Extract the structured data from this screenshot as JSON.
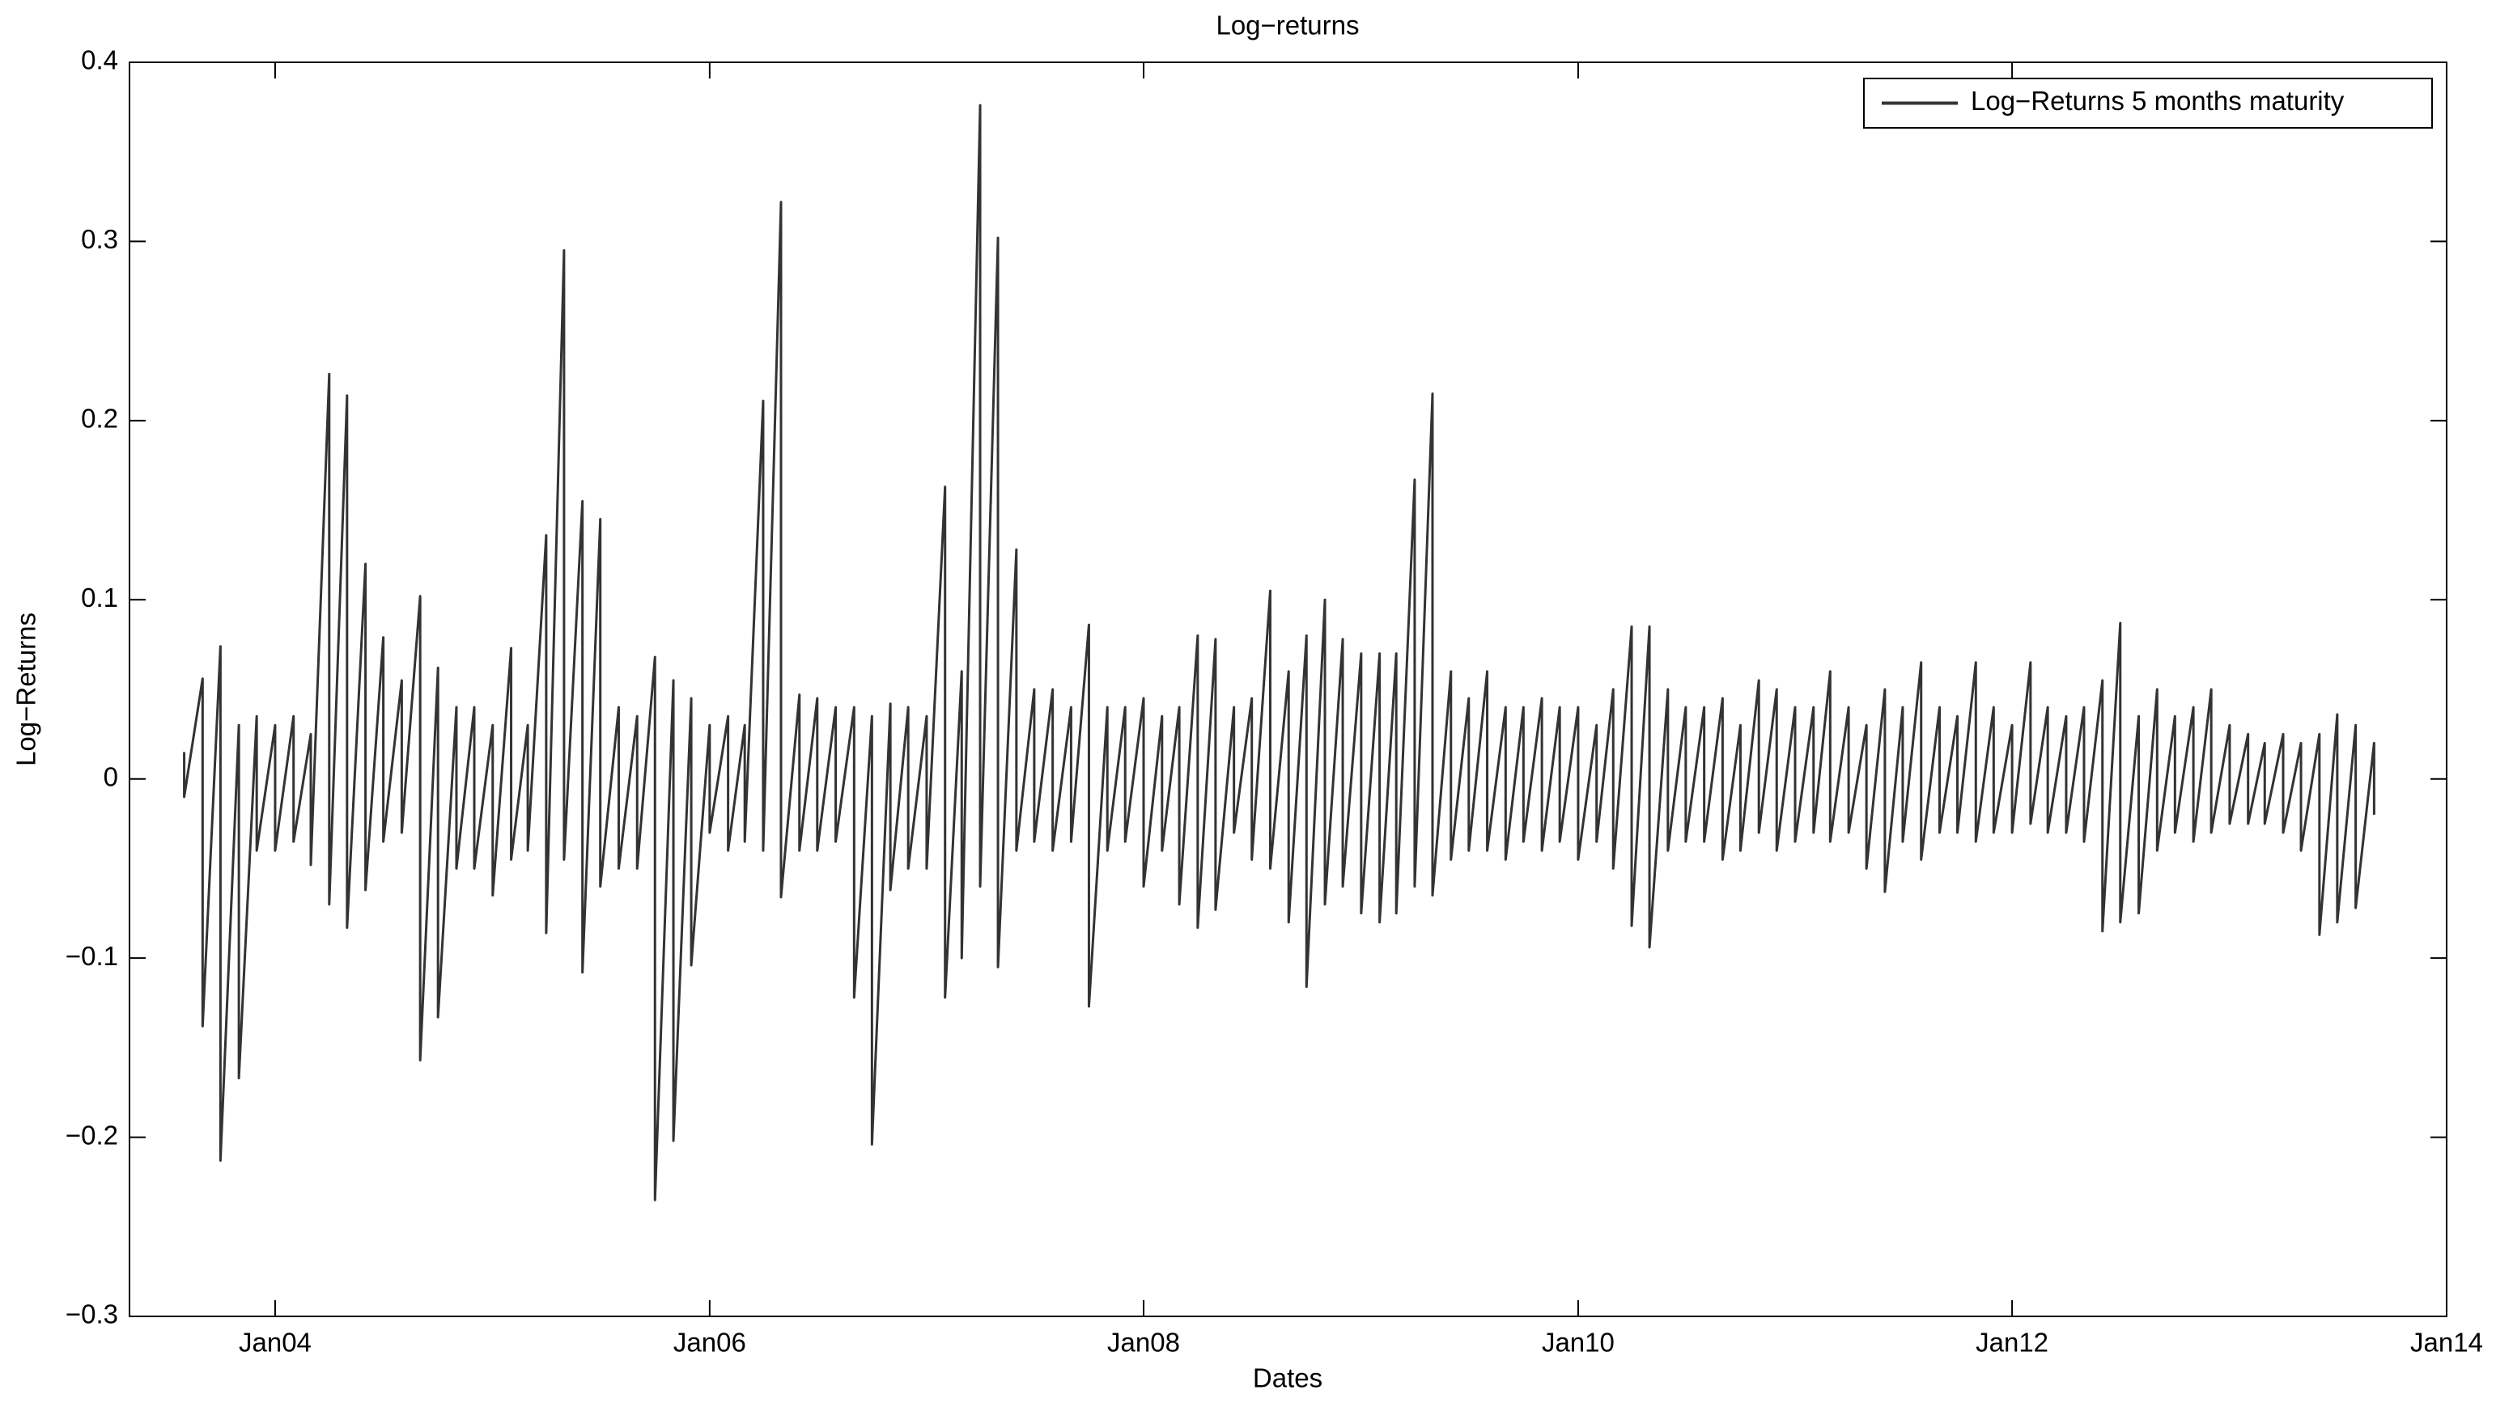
{
  "chart_data": {
    "type": "line",
    "title": "Log−returns",
    "x_label": "Dates",
    "y_label": "Log−Returns",
    "x": [
      "2003-08",
      "2003-08",
      "2003-09",
      "2003-09",
      "2003-10",
      "2003-10",
      "2003-11",
      "2003-11",
      "2003-12",
      "2003-12",
      "2004-01",
      "2004-01",
      "2004-02",
      "2004-02",
      "2004-03",
      "2004-03",
      "2004-04",
      "2004-04",
      "2004-05",
      "2004-05",
      "2004-06",
      "2004-06",
      "2004-07",
      "2004-07",
      "2004-08",
      "2004-08",
      "2004-09",
      "2004-09",
      "2004-10",
      "2004-10",
      "2004-11",
      "2004-11",
      "2004-12",
      "2004-12",
      "2005-01",
      "2005-01",
      "2005-02",
      "2005-02",
      "2005-03",
      "2005-03",
      "2005-04",
      "2005-04",
      "2005-05",
      "2005-05",
      "2005-06",
      "2005-06",
      "2005-07",
      "2005-07",
      "2005-08",
      "2005-08",
      "2005-09",
      "2005-09",
      "2005-10",
      "2005-10",
      "2005-11",
      "2005-11",
      "2005-12",
      "2005-12",
      "2006-01",
      "2006-01",
      "2006-02",
      "2006-02",
      "2006-03",
      "2006-03",
      "2006-04",
      "2006-04",
      "2006-05",
      "2006-05",
      "2006-06",
      "2006-06",
      "2006-07",
      "2006-07",
      "2006-08",
      "2006-08",
      "2006-09",
      "2006-09",
      "2006-10",
      "2006-10",
      "2006-11",
      "2006-11",
      "2006-12",
      "2006-12",
      "2007-01",
      "2007-01",
      "2007-02",
      "2007-02",
      "2007-03",
      "2007-03",
      "2007-04",
      "2007-04",
      "2007-05",
      "2007-05",
      "2007-06",
      "2007-06",
      "2007-07",
      "2007-07",
      "2007-08",
      "2007-08",
      "2007-09",
      "2007-09",
      "2007-10",
      "2007-10",
      "2007-11",
      "2007-11",
      "2007-12",
      "2007-12",
      "2008-01",
      "2008-01",
      "2008-02",
      "2008-02",
      "2008-03",
      "2008-03",
      "2008-04",
      "2008-04",
      "2008-05",
      "2008-05",
      "2008-06",
      "2008-06",
      "2008-07",
      "2008-07",
      "2008-08",
      "2008-08",
      "2008-09",
      "2008-09",
      "2008-10",
      "2008-10",
      "2008-11",
      "2008-11",
      "2008-12",
      "2008-12",
      "2009-01",
      "2009-01",
      "2009-02",
      "2009-02",
      "2009-03",
      "2009-03",
      "2009-04",
      "2009-04",
      "2009-05",
      "2009-05",
      "2009-06",
      "2009-06",
      "2009-07",
      "2009-07",
      "2009-08",
      "2009-08",
      "2009-09",
      "2009-09",
      "2009-10",
      "2009-10",
      "2009-11",
      "2009-11",
      "2009-12",
      "2009-12",
      "2010-01",
      "2010-01",
      "2010-02",
      "2010-02",
      "2010-03",
      "2010-03",
      "2010-04",
      "2010-04",
      "2010-05",
      "2010-05",
      "2010-06",
      "2010-06",
      "2010-07",
      "2010-07",
      "2010-08",
      "2010-08",
      "2010-09",
      "2010-09",
      "2010-10",
      "2010-10",
      "2010-11",
      "2010-11",
      "2010-12",
      "2010-12",
      "2011-01",
      "2011-01",
      "2011-02",
      "2011-02",
      "2011-03",
      "2011-03",
      "2011-04",
      "2011-04",
      "2011-05",
      "2011-05",
      "2011-06",
      "2011-06",
      "2011-07",
      "2011-07",
      "2011-08",
      "2011-08",
      "2011-09",
      "2011-09",
      "2011-10",
      "2011-10",
      "2011-11",
      "2011-11",
      "2011-12",
      "2011-12",
      "2012-01",
      "2012-01",
      "2012-02",
      "2012-02",
      "2012-03",
      "2012-03",
      "2012-04",
      "2012-04",
      "2012-05",
      "2012-05",
      "2012-06",
      "2012-06",
      "2012-07",
      "2012-07",
      "2012-08",
      "2012-08",
      "2012-09",
      "2012-09",
      "2012-10",
      "2012-10",
      "2012-11",
      "2012-11",
      "2012-12",
      "2012-12",
      "2013-01",
      "2013-01",
      "2013-02",
      "2013-02",
      "2013-03",
      "2013-03",
      "2013-04",
      "2013-04",
      "2013-05",
      "2013-05",
      "2013-06",
      "2013-06",
      "2013-07",
      "2013-07",
      "2013-08",
      "2013-08",
      "2013-09",
      "2013-09"
    ],
    "series": [
      {
        "name": "Log−Returns 5 months maturity",
        "color": "#333333",
        "values": [
          0.015,
          -0.01,
          0.056,
          -0.138,
          0.074,
          -0.213,
          0.03,
          -0.167,
          0.035,
          -0.04,
          0.03,
          -0.04,
          0.035,
          -0.035,
          0.025,
          -0.048,
          0.226,
          -0.07,
          0.214,
          -0.083,
          0.12,
          -0.062,
          0.079,
          -0.035,
          0.055,
          -0.03,
          0.102,
          -0.157,
          0.062,
          -0.133,
          0.04,
          -0.05,
          0.04,
          -0.05,
          0.03,
          -0.065,
          0.073,
          -0.045,
          0.03,
          -0.04,
          0.136,
          -0.086,
          0.295,
          -0.045,
          0.155,
          -0.108,
          0.145,
          -0.06,
          0.04,
          -0.05,
          0.035,
          -0.05,
          0.068,
          -0.235,
          0.055,
          -0.202,
          0.045,
          -0.104,
          0.03,
          -0.03,
          0.035,
          -0.04,
          0.03,
          -0.035,
          0.211,
          -0.04,
          0.322,
          -0.066,
          0.047,
          -0.04,
          0.045,
          -0.04,
          0.04,
          -0.035,
          0.04,
          -0.122,
          0.035,
          -0.204,
          0.042,
          -0.062,
          0.04,
          -0.05,
          0.035,
          -0.05,
          0.163,
          -0.122,
          0.06,
          -0.1,
          0.376,
          -0.06,
          0.302,
          -0.105,
          0.128,
          -0.04,
          0.05,
          -0.035,
          0.05,
          -0.04,
          0.04,
          -0.035,
          0.086,
          -0.127,
          0.04,
          -0.04,
          0.04,
          -0.035,
          0.045,
          -0.06,
          0.035,
          -0.04,
          0.04,
          -0.07,
          0.08,
          -0.083,
          0.078,
          -0.073,
          0.04,
          -0.03,
          0.045,
          -0.045,
          0.105,
          -0.05,
          0.06,
          -0.08,
          0.08,
          -0.116,
          0.1,
          -0.07,
          0.078,
          -0.06,
          0.07,
          -0.075,
          0.07,
          -0.08,
          0.07,
          -0.075,
          0.167,
          -0.06,
          0.215,
          -0.065,
          0.06,
          -0.045,
          0.045,
          -0.04,
          0.06,
          -0.04,
          0.04,
          -0.045,
          0.04,
          -0.035,
          0.045,
          -0.04,
          0.04,
          -0.035,
          0.04,
          -0.045,
          0.03,
          -0.035,
          0.05,
          -0.05,
          0.085,
          -0.082,
          0.085,
          -0.094,
          0.05,
          -0.04,
          0.04,
          -0.035,
          0.04,
          -0.035,
          0.045,
          -0.045,
          0.03,
          -0.04,
          0.055,
          -0.03,
          0.05,
          -0.04,
          0.04,
          -0.035,
          0.04,
          -0.03,
          0.06,
          -0.035,
          0.04,
          -0.03,
          0.03,
          -0.05,
          0.05,
          -0.063,
          0.04,
          -0.035,
          0.065,
          -0.045,
          0.04,
          -0.03,
          0.035,
          -0.03,
          0.065,
          -0.035,
          0.04,
          -0.03,
          0.03,
          -0.03,
          0.065,
          -0.025,
          0.04,
          -0.03,
          0.035,
          -0.03,
          0.04,
          -0.035,
          0.055,
          -0.085,
          0.087,
          -0.08,
          0.035,
          -0.075,
          0.05,
          -0.04,
          0.035,
          -0.03,
          0.04,
          -0.035,
          0.05,
          -0.03,
          0.03,
          -0.025,
          0.025,
          -0.025,
          0.02,
          -0.025,
          0.025,
          -0.03,
          0.02,
          -0.04,
          0.025,
          -0.087,
          0.036,
          -0.08,
          0.03,
          -0.072,
          0.02,
          -0.02
        ]
      }
    ],
    "xlim": [
      "2003-05",
      "2014-01"
    ],
    "xticks": [
      {
        "value": "2004-01",
        "label": "Jan04"
      },
      {
        "value": "2006-01",
        "label": "Jan06"
      },
      {
        "value": "2008-01",
        "label": "Jan08"
      },
      {
        "value": "2010-01",
        "label": "Jan10"
      },
      {
        "value": "2012-01",
        "label": "Jan12"
      },
      {
        "value": "2014-01",
        "label": "Jan14"
      }
    ],
    "ylim": [
      -0.3,
      0.4
    ],
    "yticks": [
      {
        "value": -0.3,
        "label": "−0.3"
      },
      {
        "value": -0.2,
        "label": "−0.2"
      },
      {
        "value": -0.1,
        "label": "−0.1"
      },
      0,
      0.1,
      0.2,
      0.3,
      0.4
    ],
    "grid": false,
    "legend": "upper right"
  }
}
